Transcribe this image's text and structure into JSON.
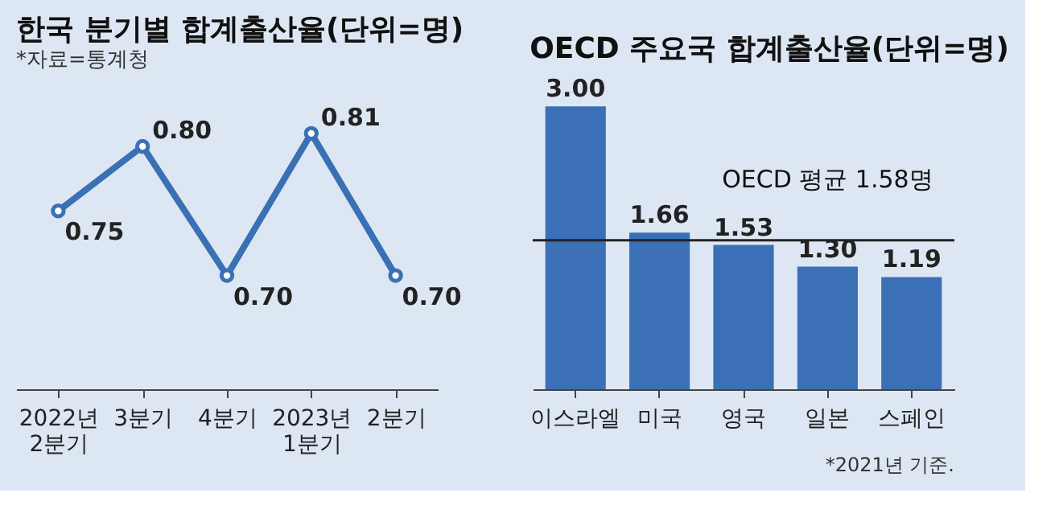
{
  "chart_data": [
    {
      "type": "line",
      "title": "한국 분기별 합계출산율(단위=명)",
      "subtitle": "*자료=통계청",
      "categories": [
        "2022년\n2분기",
        "3분기",
        "4분기",
        "2023년\n1분기",
        "2분기"
      ],
      "values": [
        0.75,
        0.8,
        0.7,
        0.81,
        0.7
      ],
      "value_labels": [
        "0.75",
        "0.80",
        "0.70",
        "0.81",
        "0.70"
      ],
      "color": "#3a70b4",
      "marker": "circle",
      "grid": false,
      "tick_labels": "x"
    },
    {
      "type": "bar",
      "title": "OECD 주요국 합계출산율(단위=명)",
      "categories": [
        "이스라엘",
        "미국",
        "영국",
        "일본",
        "스페인"
      ],
      "values": [
        3.0,
        1.66,
        1.53,
        1.3,
        1.19
      ],
      "value_labels": [
        "3.00",
        "1.66",
        "1.53",
        "1.30",
        "1.19"
      ],
      "color": "#3b6fb6",
      "grid": false,
      "tick_labels": "x",
      "ref_lines": [
        {
          "axis": "y",
          "value": 1.58,
          "label": "OECD 평균 1.58명",
          "color": "#222222"
        }
      ],
      "annotations": [
        "*2021년 기준."
      ]
    }
  ]
}
